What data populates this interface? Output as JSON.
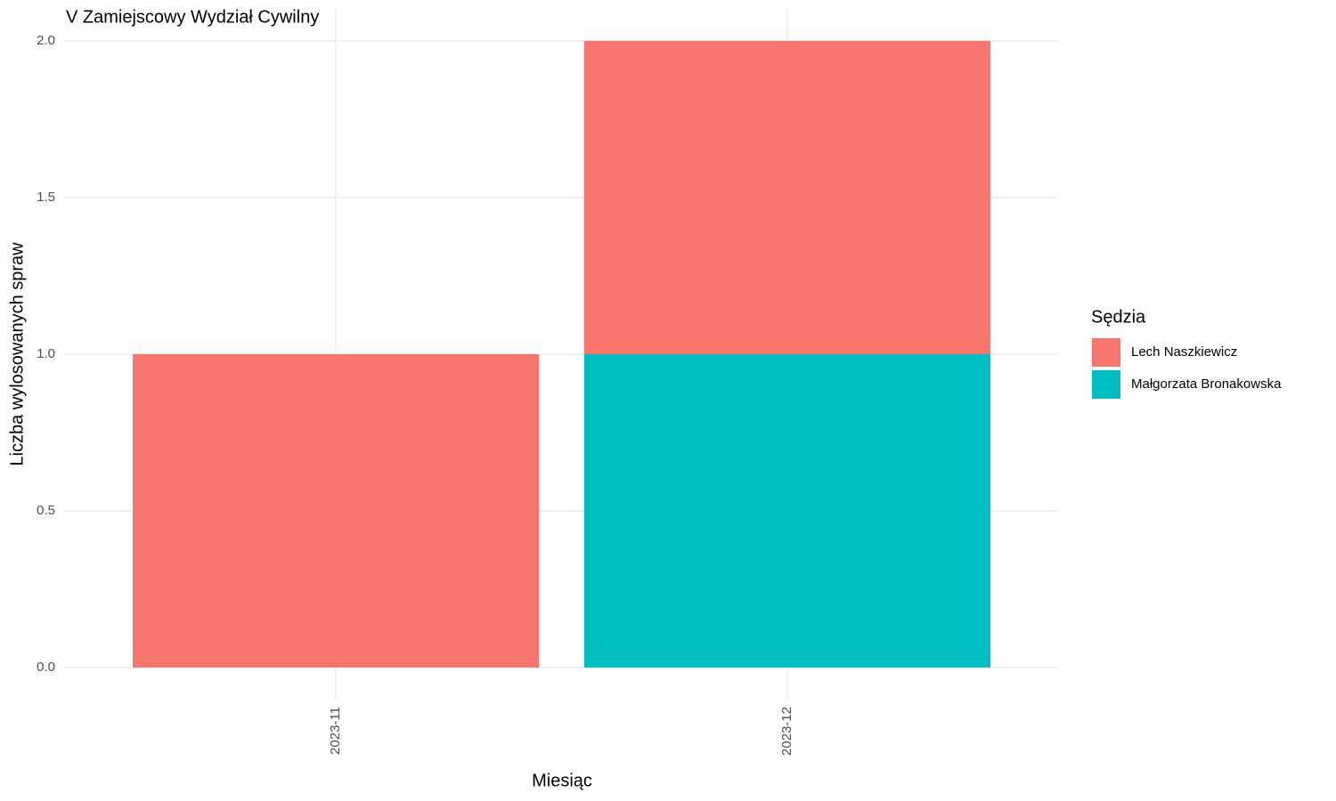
{
  "chart_data": {
    "type": "bar",
    "stacked": true,
    "title": "V Zamiejscowy Wydział Cywilny",
    "x_label": "Miesiąc",
    "y_label": "Liczba wylosowanych spraw",
    "legend_title": "Sędzia",
    "legend_position": "right",
    "categories": [
      "2023-11",
      "2023-12"
    ],
    "series": [
      {
        "name": "Lech Naszkiewicz",
        "color": "#f8766d",
        "values": [
          1,
          1
        ]
      },
      {
        "name": "Małgorzata Bronakowska",
        "color": "#00bfc4",
        "values": [
          0,
          1
        ]
      }
    ],
    "ylim": [
      -0.1,
      2.1
    ],
    "yticks": [
      {
        "value": 0,
        "label": "0.0"
      },
      0.5,
      {
        "value": 1,
        "label": "1.0"
      },
      1.5,
      {
        "value": 2,
        "label": "2.0"
      }
    ],
    "grid": true
  }
}
